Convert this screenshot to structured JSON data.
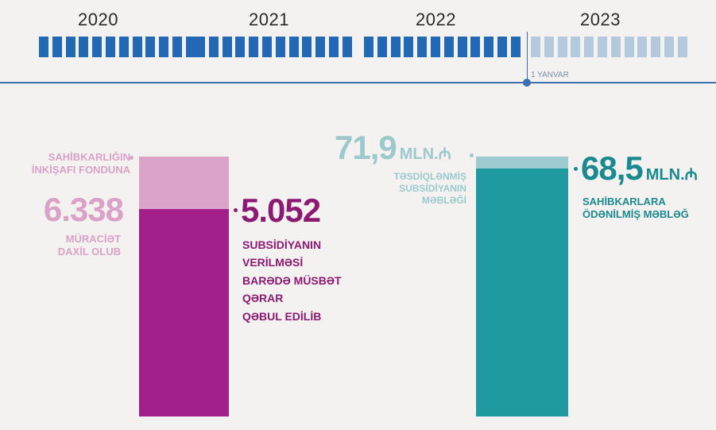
{
  "timeline": {
    "years": [
      "2020",
      "2021",
      "2022",
      "2023"
    ],
    "marker_label": "1 YANVAR",
    "colors": {
      "past": "#2368b4",
      "future": "#b4c8de",
      "axis": "#3d6fb0"
    }
  },
  "chart_data": [
    {
      "type": "bar",
      "title": "",
      "unit": "",
      "series": [
        {
          "name": "Sahibkarlığın İnkişafı Fonduna müraciət daxil olub",
          "value": 6338,
          "display": "6.338",
          "color": "#dba3c8"
        },
        {
          "name": "Subsidiyanın verilməsi barədə müsbət qərar qəbul edilib",
          "value": 5052,
          "display": "5.052",
          "color": "#a3208a"
        }
      ],
      "labels": {
        "applications_lines": [
          "SAHİBKARLIĞIN",
          "İNKİŞAFI FONDUNA"
        ],
        "applications_value": "6.338",
        "applications_lines_after": [
          "MÜRACİƏT",
          "DAXİL OLUB"
        ],
        "approved_value": "5.052",
        "approved_lines": [
          "SUBSİDİYANIN",
          "VERİLMƏSİ",
          "BARƏDƏ MÜSBƏT",
          "QƏRAR",
          "QƏBUL EDİLİB"
        ]
      }
    },
    {
      "type": "bar",
      "title": "",
      "unit": "mln. ₼",
      "series": [
        {
          "name": "Təsdiqlənmiş subsidiyanın məbləği",
          "value": 71.9,
          "display": "71,9",
          "color": "#9cccd0"
        },
        {
          "name": "Sahibkarlara ödənilmiş məbləğ",
          "value": 68.5,
          "display": "68,5",
          "color": "#1e9aa0"
        }
      ],
      "labels": {
        "approved_amount_value": "71,9",
        "approved_amount_unit": "mln.₼",
        "approved_amount_lines": [
          "TƏSDİQLƏNMİŞ",
          "SUBSİDİYANIN",
          "MƏBLƏĞİ"
        ],
        "paid_value": "68,5",
        "paid_unit": "mln.₼",
        "paid_lines": [
          "SAHİBKARLARA",
          "ÖDƏNİLMİŞ MƏBLƏĞ"
        ]
      }
    }
  ]
}
